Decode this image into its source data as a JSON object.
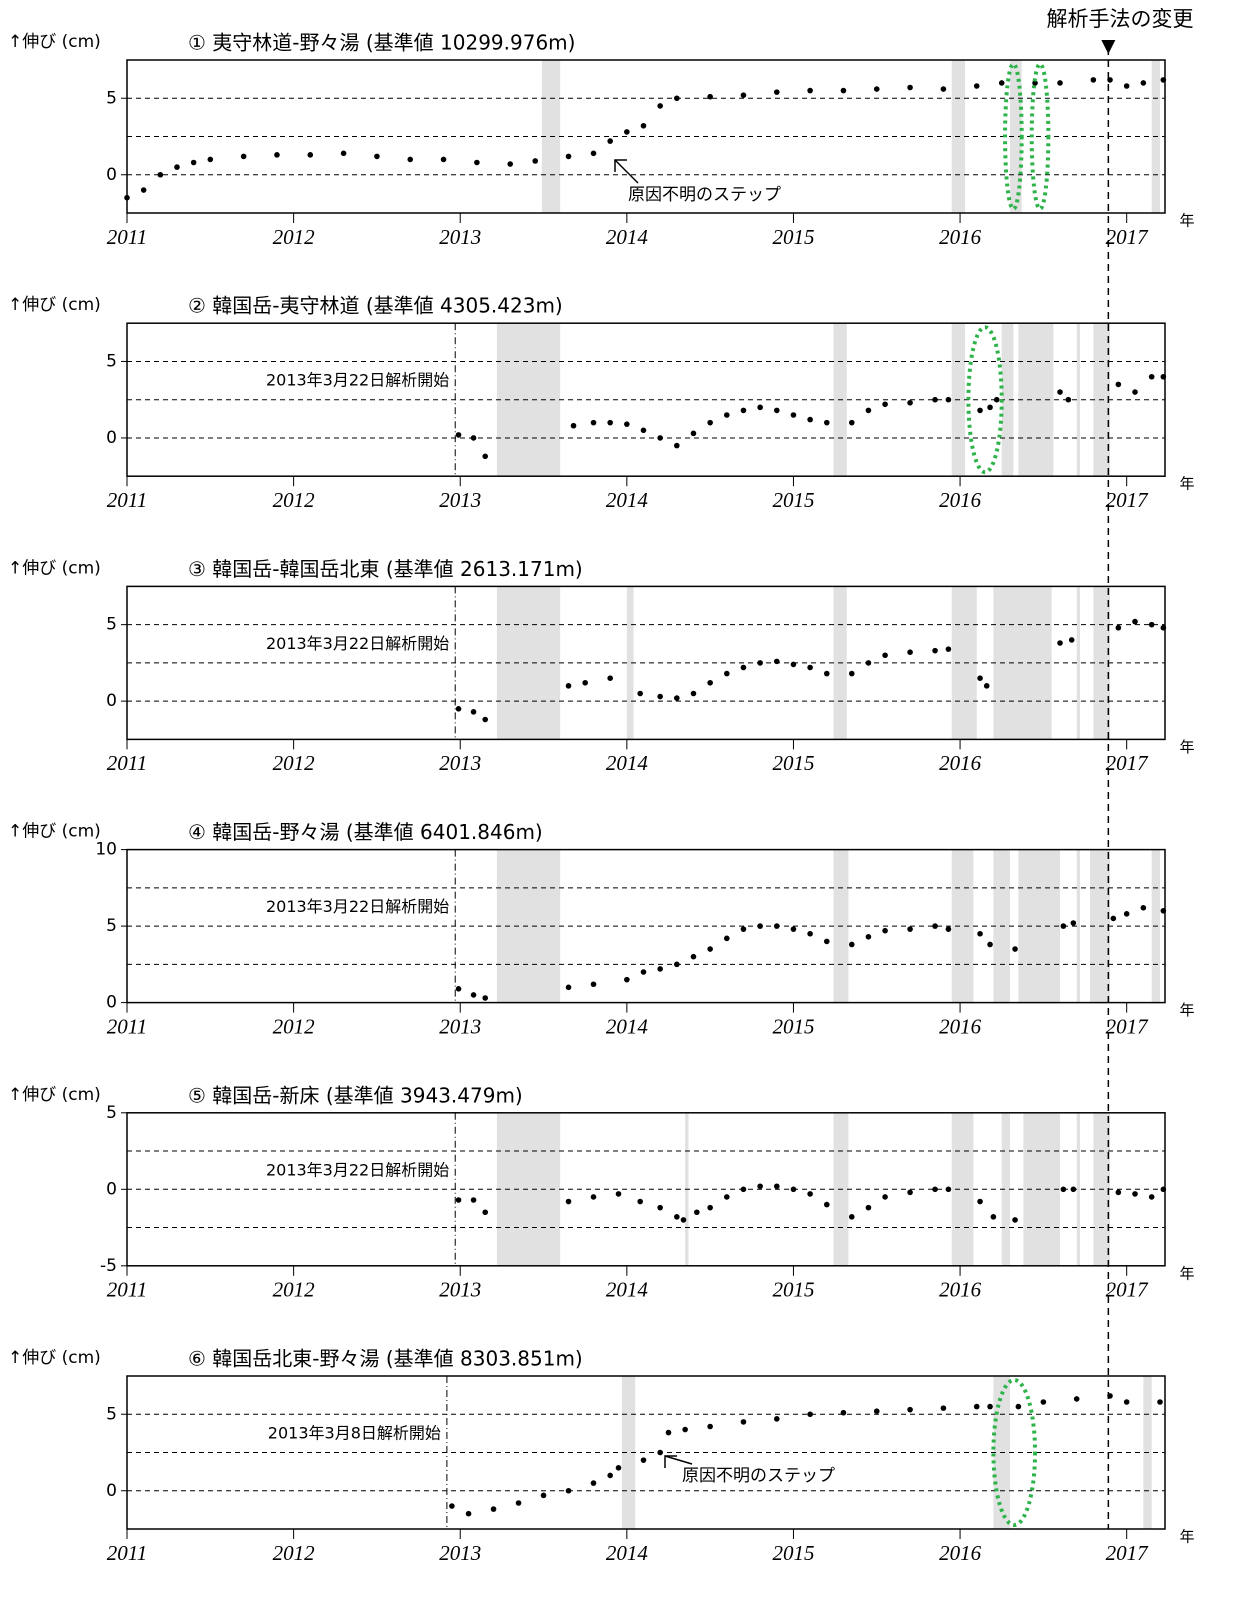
{
  "method_change": {
    "label": "解析手法の変更",
    "x": 2016.89
  },
  "chart_data": [
    {
      "type": "scatter",
      "title": "① 夷守林道-野々湯 (基準値  10299.976m)",
      "ylabel": "↑伸び (cm)",
      "xunit": "年",
      "xlim": [
        2011,
        2017.23
      ],
      "xticks": [
        2011,
        2012,
        2013,
        2014,
        2015,
        2016,
        2017
      ],
      "ylim": [
        -2.5,
        7.5
      ],
      "yticks": [
        0,
        5
      ],
      "grid_lines": [
        0,
        2.5,
        5
      ],
      "color": "#000000",
      "gaps": [
        [
          2013.49,
          2013.6
        ],
        [
          2015.95,
          2016.03
        ],
        [
          2016.3,
          2016.37
        ],
        [
          2017.15,
          2017.2
        ]
      ],
      "highlights": [
        [
          2016.27,
          2016.37
        ],
        [
          2016.43,
          2016.53
        ]
      ],
      "step_note": "原因不明のステップ",
      "x": [
        2011.0,
        2011.1,
        2011.2,
        2011.3,
        2011.4,
        2011.5,
        2011.7,
        2011.9,
        2012.1,
        2012.3,
        2012.5,
        2012.7,
        2012.9,
        2013.1,
        2013.3,
        2013.45,
        2013.65,
        2013.8,
        2013.9,
        2014.0,
        2014.1,
        2014.2,
        2014.3,
        2014.5,
        2014.7,
        2014.9,
        2015.1,
        2015.3,
        2015.5,
        2015.7,
        2015.9,
        2016.1,
        2016.25,
        2016.45,
        2016.6,
        2016.8,
        2016.9,
        2017.0,
        2017.1,
        2017.22
      ],
      "values": [
        -1.5,
        -1,
        0,
        0.5,
        0.8,
        1.0,
        1.2,
        1.3,
        1.3,
        1.4,
        1.2,
        1.0,
        1.0,
        0.8,
        0.7,
        0.9,
        1.2,
        1.4,
        2.2,
        2.8,
        3.2,
        4.5,
        5.0,
        5.1,
        5.2,
        5.4,
        5.5,
        5.5,
        5.6,
        5.7,
        5.6,
        5.8,
        6.0,
        6.0,
        6.0,
        6.2,
        6.2,
        5.8,
        6.0,
        6.2
      ]
    },
    {
      "type": "scatter",
      "title": "② 韓国岳-夷守林道 (基準値  4305.423m)",
      "ylabel": "↑伸び (cm)",
      "xunit": "年",
      "xlim": [
        2011,
        2017.23
      ],
      "xticks": [
        2011,
        2012,
        2013,
        2014,
        2015,
        2016,
        2017
      ],
      "ylim": [
        -2.5,
        7.5
      ],
      "yticks": [
        0,
        5
      ],
      "grid_lines": [
        0,
        2.5,
        5
      ],
      "color": "#000000",
      "start_line": {
        "x": 2012.97,
        "label": "2013年3月22日解析開始"
      },
      "gaps": [
        [
          2013.22,
          2013.6
        ],
        [
          2015.24,
          2015.32
        ],
        [
          2015.95,
          2016.03
        ],
        [
          2016.25,
          2016.32
        ],
        [
          2016.35,
          2016.56
        ],
        [
          2016.7,
          2016.72
        ],
        [
          2016.8,
          2016.9
        ]
      ],
      "highlights": [
        [
          2016.05,
          2016.25
        ]
      ],
      "x": [
        2012.99,
        2013.08,
        2013.15,
        2013.68,
        2013.8,
        2013.9,
        2014.0,
        2014.1,
        2014.2,
        2014.3,
        2014.4,
        2014.5,
        2014.6,
        2014.7,
        2014.8,
        2014.9,
        2015.0,
        2015.1,
        2015.2,
        2015.35,
        2015.45,
        2015.55,
        2015.7,
        2015.85,
        2015.93,
        2016.12,
        2016.18,
        2016.22,
        2016.6,
        2016.65,
        2016.95,
        2017.05,
        2017.15,
        2017.22
      ],
      "values": [
        0.2,
        0,
        -1.2,
        0.8,
        1.0,
        1.0,
        0.9,
        0.5,
        0,
        -0.5,
        0.3,
        1.0,
        1.5,
        1.8,
        2.0,
        1.8,
        1.5,
        1.2,
        1.0,
        1.0,
        1.8,
        2.2,
        2.3,
        2.5,
        2.5,
        1.8,
        2.0,
        2.5,
        3.0,
        2.5,
        3.5,
        3.0,
        4.0,
        4.0
      ]
    },
    {
      "type": "scatter",
      "title": "③ 韓国岳-韓国岳北東 (基準値  2613.171m)",
      "ylabel": "↑伸び (cm)",
      "xunit": "年",
      "xlim": [
        2011,
        2017.23
      ],
      "xticks": [
        2011,
        2012,
        2013,
        2014,
        2015,
        2016,
        2017
      ],
      "ylim": [
        -2.5,
        7.5
      ],
      "yticks": [
        0,
        5
      ],
      "grid_lines": [
        0,
        2.5,
        5
      ],
      "color": "#000000",
      "start_line": {
        "x": 2012.97,
        "label": "2013年3月22日解析開始"
      },
      "gaps": [
        [
          2013.22,
          2013.6
        ],
        [
          2014.0,
          2014.04
        ],
        [
          2015.24,
          2015.32
        ],
        [
          2015.95,
          2016.1
        ],
        [
          2016.2,
          2016.55
        ],
        [
          2016.7,
          2016.72
        ],
        [
          2016.8,
          2016.9
        ]
      ],
      "x": [
        2012.99,
        2013.08,
        2013.15,
        2013.65,
        2013.75,
        2013.9,
        2014.08,
        2014.2,
        2014.3,
        2014.4,
        2014.5,
        2014.6,
        2014.7,
        2014.8,
        2014.9,
        2015.0,
        2015.1,
        2015.2,
        2015.35,
        2015.45,
        2015.55,
        2015.7,
        2015.85,
        2015.93,
        2016.12,
        2016.16,
        2016.6,
        2016.67,
        2016.95,
        2017.05,
        2017.15,
        2017.22
      ],
      "values": [
        -0.5,
        -0.7,
        -1.2,
        1.0,
        1.2,
        1.5,
        0.5,
        0.3,
        0.2,
        0.5,
        1.2,
        1.8,
        2.2,
        2.5,
        2.6,
        2.4,
        2.2,
        1.8,
        1.8,
        2.5,
        3.0,
        3.2,
        3.3,
        3.4,
        1.5,
        1.0,
        3.8,
        4.0,
        4.8,
        5.2,
        5.0,
        4.8
      ]
    },
    {
      "type": "scatter",
      "title": "④ 韓国岳-野々湯 (基準値  6401.846m)",
      "ylabel": "↑伸び (cm)",
      "xunit": "年",
      "xlim": [
        2011,
        2017.23
      ],
      "xticks": [
        2011,
        2012,
        2013,
        2014,
        2015,
        2016,
        2017
      ],
      "ylim": [
        0,
        10
      ],
      "yticks": [
        0,
        5,
        10
      ],
      "grid_lines": [
        2.5,
        5,
        7.5
      ],
      "color": "#000000",
      "start_line": {
        "x": 2012.97,
        "label": "2013年3月22日解析開始"
      },
      "gaps": [
        [
          2013.22,
          2013.6
        ],
        [
          2015.24,
          2015.33
        ],
        [
          2015.95,
          2016.08
        ],
        [
          2016.2,
          2016.3
        ],
        [
          2016.35,
          2016.6
        ],
        [
          2016.7,
          2016.72
        ],
        [
          2016.78,
          2016.9
        ],
        [
          2017.15,
          2017.2
        ]
      ],
      "x": [
        2012.99,
        2013.08,
        2013.15,
        2013.65,
        2013.8,
        2014.0,
        2014.1,
        2014.2,
        2014.3,
        2014.4,
        2014.5,
        2014.6,
        2014.7,
        2014.8,
        2014.9,
        2015.0,
        2015.1,
        2015.2,
        2015.35,
        2015.45,
        2015.55,
        2015.7,
        2015.85,
        2015.93,
        2016.12,
        2016.18,
        2016.33,
        2016.62,
        2016.68,
        2016.92,
        2017.0,
        2017.1,
        2017.22
      ],
      "values": [
        0.9,
        0.5,
        0.3,
        1.0,
        1.2,
        1.5,
        2.0,
        2.2,
        2.5,
        3.0,
        3.5,
        4.2,
        4.8,
        5.0,
        5.0,
        4.8,
        4.5,
        4.0,
        3.8,
        4.3,
        4.7,
        4.8,
        5.0,
        4.8,
        4.5,
        3.8,
        3.5,
        5.0,
        5.2,
        5.5,
        5.8,
        6.2,
        6.0
      ]
    },
    {
      "type": "scatter",
      "title": "⑤ 韓国岳-新床 (基準値  3943.479m)",
      "ylabel": "↑伸び (cm)",
      "xunit": "年",
      "xlim": [
        2011,
        2017.23
      ],
      "xticks": [
        2011,
        2012,
        2013,
        2014,
        2015,
        2016,
        2017
      ],
      "ylim": [
        -5,
        5
      ],
      "yticks": [
        -5,
        0,
        5
      ],
      "grid_lines": [
        -2.5,
        0,
        2.5
      ],
      "color": "#000000",
      "start_line": {
        "x": 2012.97,
        "label": "2013年3月22日解析開始"
      },
      "gaps": [
        [
          2013.22,
          2013.6
        ],
        [
          2014.35,
          2014.37
        ],
        [
          2015.24,
          2015.33
        ],
        [
          2015.95,
          2016.08
        ],
        [
          2016.25,
          2016.3
        ],
        [
          2016.38,
          2016.6
        ],
        [
          2016.7,
          2016.72
        ],
        [
          2016.8,
          2016.9
        ]
      ],
      "x": [
        2012.99,
        2013.08,
        2013.15,
        2013.65,
        2013.8,
        2013.95,
        2014.08,
        2014.2,
        2014.3,
        2014.34,
        2014.42,
        2014.5,
        2014.6,
        2014.7,
        2014.8,
        2014.9,
        2015.0,
        2015.1,
        2015.2,
        2015.35,
        2015.45,
        2015.55,
        2015.7,
        2015.85,
        2015.93,
        2016.12,
        2016.2,
        2016.33,
        2016.62,
        2016.68,
        2016.95,
        2017.05,
        2017.15,
        2017.22
      ],
      "values": [
        -0.7,
        -0.7,
        -1.5,
        -0.8,
        -0.5,
        -0.3,
        -0.8,
        -1.2,
        -1.8,
        -2.0,
        -1.5,
        -1.2,
        -0.5,
        0,
        0.2,
        0.2,
        0,
        -0.3,
        -1.0,
        -1.8,
        -1.2,
        -0.5,
        -0.2,
        0,
        0,
        -0.8,
        -1.8,
        -2.0,
        0,
        0,
        -0.2,
        -0.3,
        -0.5,
        0
      ]
    },
    {
      "type": "scatter",
      "title": "⑥ 韓国岳北東-野々湯 (基準値  8303.851m)",
      "ylabel": "↑伸び (cm)",
      "xunit": "年",
      "xlim": [
        2011,
        2017.23
      ],
      "xticks": [
        2011,
        2012,
        2013,
        2014,
        2015,
        2016,
        2017
      ],
      "ylim": [
        -2.5,
        7.5
      ],
      "yticks": [
        0,
        5
      ],
      "grid_lines": [
        0,
        2.5,
        5
      ],
      "color": "#000000",
      "start_line": {
        "x": 2012.92,
        "label": "2013年3月8日解析開始"
      },
      "gaps": [
        [
          2013.97,
          2014.05
        ],
        [
          2016.2,
          2016.3
        ],
        [
          2017.1,
          2017.15
        ]
      ],
      "highlights": [
        [
          2016.2,
          2016.45
        ]
      ],
      "step_note": "原因不明のステップ",
      "x": [
        2012.95,
        2013.05,
        2013.2,
        2013.35,
        2013.5,
        2013.65,
        2013.8,
        2013.9,
        2013.95,
        2014.1,
        2014.2,
        2014.25,
        2014.35,
        2014.5,
        2014.7,
        2014.9,
        2015.1,
        2015.3,
        2015.5,
        2015.7,
        2015.9,
        2016.1,
        2016.18,
        2016.35,
        2016.5,
        2016.7,
        2016.9,
        2017.0,
        2017.2
      ],
      "values": [
        -1.0,
        -1.5,
        -1.2,
        -0.8,
        -0.3,
        0,
        0.5,
        1.0,
        1.5,
        2.0,
        2.5,
        3.8,
        4.0,
        4.2,
        4.5,
        4.7,
        5.0,
        5.1,
        5.2,
        5.3,
        5.4,
        5.5,
        5.5,
        5.5,
        5.8,
        6.0,
        6.2,
        5.8,
        5.8
      ]
    }
  ]
}
